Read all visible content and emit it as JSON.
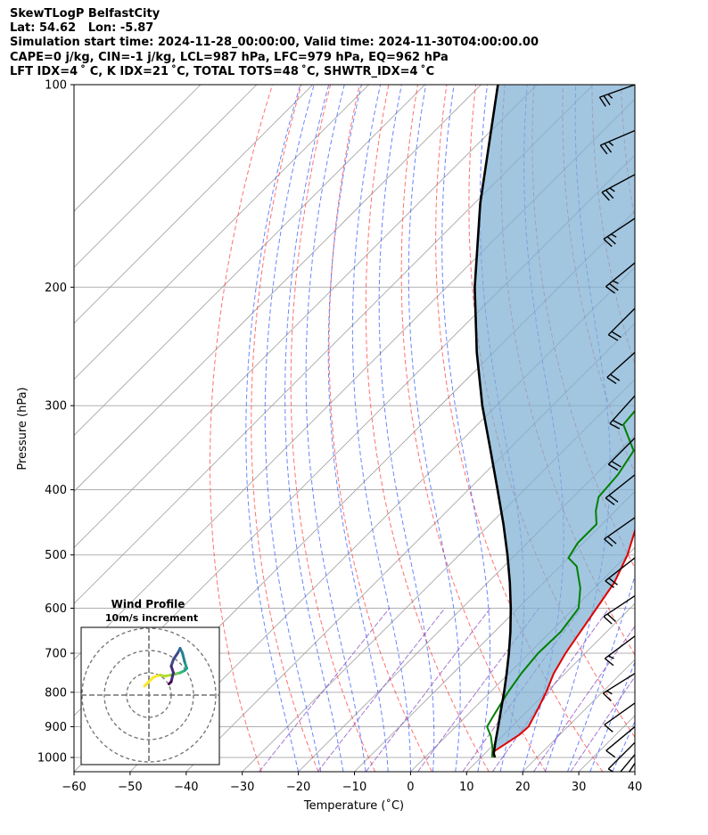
{
  "header": {
    "lines": [
      "SkewTLogP BelfastCity",
      "Lat: 54.62   Lon: -5.87",
      "Simulation start time: 2024-11-28_00:00:00, Valid time: 2024-11-30T04:00:00.00",
      "CAPE=0 j/kg, CIN=-1 j/kg, LCL=987 hPa, LFC=979 hPa, EQ=962 hPa",
      "LFT IDX=4 ˚ C, K IDX=21 ˚C, TOTAL TOTS=48 ˚C, SHWTR_IDX=4 ˚C"
    ]
  },
  "chart_data": {
    "type": "skewt-logp",
    "xlabel": "Temperature (˚C)",
    "ylabel": "Pressure (hPa)",
    "xlim": [
      -60,
      40
    ],
    "ylim": [
      1050,
      100
    ],
    "x_ticks": [
      -60,
      -50,
      -40,
      -30,
      -20,
      -10,
      0,
      10,
      20,
      30,
      40
    ],
    "y_ticks": [
      100,
      200,
      300,
      400,
      500,
      600,
      700,
      800,
      900,
      1000
    ],
    "grid": true,
    "skew_deg": 45,
    "colors": {
      "temperature": "#e00000",
      "dewpoint": "#008000",
      "parcel": "#000000",
      "cape_fill": "#7eb0d4",
      "dry_adiabats": "#ff4040",
      "moist_adiabats": "#3b5bff",
      "mixing_ratio": "#7f3fbf",
      "isotherms": "#9e9e9e"
    },
    "temperature_profile": [
      {
        "p": 1000,
        "t": 12.5
      },
      {
        "p": 980,
        "t": 11.2
      },
      {
        "p": 950,
        "t": 12.1
      },
      {
        "p": 925,
        "t": 12.8
      },
      {
        "p": 900,
        "t": 13.0
      },
      {
        "p": 850,
        "t": 11.6
      },
      {
        "p": 800,
        "t": 10.0
      },
      {
        "p": 750,
        "t": 8.0
      },
      {
        "p": 700,
        "t": 6.5
      },
      {
        "p": 650,
        "t": 5.3
      },
      {
        "p": 600,
        "t": 4.0
      },
      {
        "p": 550,
        "t": 2.6
      },
      {
        "p": 500,
        "t": 0.0
      },
      {
        "p": 450,
        "t": -3.8
      },
      {
        "p": 400,
        "t": -7.8
      },
      {
        "p": 370,
        "t": -11.0
      },
      {
        "p": 350,
        "t": -12.5
      },
      {
        "p": 330,
        "t": -13.5
      },
      {
        "p": 310,
        "t": -14.2
      },
      {
        "p": 300,
        "t": -14.5
      },
      {
        "p": 280,
        "t": -14.6
      },
      {
        "p": 250,
        "t": -13.8
      },
      {
        "p": 225,
        "t": -12.0
      },
      {
        "p": 200,
        "t": -9.0
      },
      {
        "p": 175,
        "t": -5.5
      },
      {
        "p": 150,
        "t": -2.0
      },
      {
        "p": 130,
        "t": 2.0
      },
      {
        "p": 115,
        "t": 4.0
      },
      {
        "p": 108,
        "t": 4.0
      },
      {
        "p": 100,
        "t": 4.5
      }
    ],
    "dewpoint_profile": [
      {
        "p": 1000,
        "t": 12.0
      },
      {
        "p": 970,
        "t": 10.5
      },
      {
        "p": 930,
        "t": 8.0
      },
      {
        "p": 900,
        "t": 5.6
      },
      {
        "p": 875,
        "t": 5.0
      },
      {
        "p": 850,
        "t": 4.4
      },
      {
        "p": 800,
        "t": 3.2
      },
      {
        "p": 750,
        "t": 2.2
      },
      {
        "p": 700,
        "t": 1.6
      },
      {
        "p": 650,
        "t": 1.8
      },
      {
        "p": 600,
        "t": 0.8
      },
      {
        "p": 560,
        "t": -2.5
      },
      {
        "p": 520,
        "t": -7.0
      },
      {
        "p": 505,
        "t": -10.0
      },
      {
        "p": 480,
        "t": -11.0
      },
      {
        "p": 450,
        "t": -11.0
      },
      {
        "p": 430,
        "t": -13.5
      },
      {
        "p": 410,
        "t": -15.5
      },
      {
        "p": 380,
        "t": -16.0
      },
      {
        "p": 350,
        "t": -17.5
      },
      {
        "p": 320,
        "t": -24.0
      },
      {
        "p": 300,
        "t": -24.5
      },
      {
        "p": 280,
        "t": -25.5
      },
      {
        "p": 250,
        "t": -28.5
      },
      {
        "p": 220,
        "t": -32.5
      },
      {
        "p": 200,
        "t": -35.5
      },
      {
        "p": 180,
        "t": -38.0
      },
      {
        "p": 160,
        "t": -41.5
      },
      {
        "p": 150,
        "t": -43.5
      },
      {
        "p": 140,
        "t": -43.5
      },
      {
        "p": 130,
        "t": -40.0
      },
      {
        "p": 120,
        "t": -36.5
      },
      {
        "p": 110,
        "t": -33.5
      },
      {
        "p": 100,
        "t": -31.0
      }
    ],
    "parcel_profile": [
      {
        "p": 1000,
        "t": 12.5
      },
      {
        "p": 987,
        "t": 11.6
      },
      {
        "p": 950,
        "t": 9.9
      },
      {
        "p": 900,
        "t": 7.6
      },
      {
        "p": 850,
        "t": 5.1
      },
      {
        "p": 800,
        "t": 2.5
      },
      {
        "p": 750,
        "t": -0.4
      },
      {
        "p": 700,
        "t": -3.6
      },
      {
        "p": 650,
        "t": -7.2
      },
      {
        "p": 600,
        "t": -11.3
      },
      {
        "p": 550,
        "t": -16.0
      },
      {
        "p": 500,
        "t": -21.4
      },
      {
        "p": 450,
        "t": -27.6
      },
      {
        "p": 400,
        "t": -34.8
      },
      {
        "p": 350,
        "t": -43.0
      },
      {
        "p": 300,
        "t": -52.5
      },
      {
        "p": 250,
        "t": -63.0
      },
      {
        "p": 200,
        "t": -75.0
      },
      {
        "p": 150,
        "t": -89.0
      },
      {
        "p": 100,
        "t": -107.0
      }
    ],
    "wind_barbs": [
      {
        "p": 100,
        "u": 14,
        "v": 5
      },
      {
        "p": 117,
        "u": 14,
        "v": 6
      },
      {
        "p": 136,
        "u": 13,
        "v": 7
      },
      {
        "p": 158,
        "u": 12,
        "v": 8
      },
      {
        "p": 184,
        "u": 11,
        "v": 9
      },
      {
        "p": 215,
        "u": 10,
        "v": 10
      },
      {
        "p": 250,
        "u": 10,
        "v": 9
      },
      {
        "p": 290,
        "u": 9,
        "v": 10
      },
      {
        "p": 335,
        "u": 9,
        "v": 9
      },
      {
        "p": 380,
        "u": 10,
        "v": 8
      },
      {
        "p": 440,
        "u": 10,
        "v": 7
      },
      {
        "p": 505,
        "u": 9,
        "v": 7
      },
      {
        "p": 575,
        "u": 9,
        "v": 6
      },
      {
        "p": 660,
        "u": 8,
        "v": 6
      },
      {
        "p": 750,
        "u": 8,
        "v": 5
      },
      {
        "p": 830,
        "u": 7,
        "v": 5
      },
      {
        "p": 900,
        "u": 6,
        "v": 5
      },
      {
        "p": 950,
        "u": 5,
        "v": 5
      },
      {
        "p": 990,
        "u": 5,
        "v": 6
      },
      {
        "p": 1020,
        "u": 4,
        "v": 6
      }
    ],
    "inset": {
      "title": "Wind Profile",
      "subtitle": "10m/s increment",
      "rings_ms": [
        10,
        20,
        30
      ],
      "hodograph": [
        {
          "u": -2,
          "v": 4
        },
        {
          "u": 2,
          "v": 8
        },
        {
          "u": 5,
          "v": 9
        },
        {
          "u": 7,
          "v": 8.5
        },
        {
          "u": 10,
          "v": 9
        },
        {
          "u": 12,
          "v": 9.5
        },
        {
          "u": 14,
          "v": 10
        },
        {
          "u": 16,
          "v": 11
        },
        {
          "u": 17,
          "v": 12
        },
        {
          "u": 16,
          "v": 15
        },
        {
          "u": 15,
          "v": 19
        },
        {
          "u": 14,
          "v": 21
        },
        {
          "u": 13,
          "v": 19
        },
        {
          "u": 11,
          "v": 16
        },
        {
          "u": 10,
          "v": 13
        },
        {
          "u": 11,
          "v": 10
        },
        {
          "u": 10,
          "v": 6
        },
        {
          "u": 9,
          "v": 5
        }
      ]
    }
  }
}
